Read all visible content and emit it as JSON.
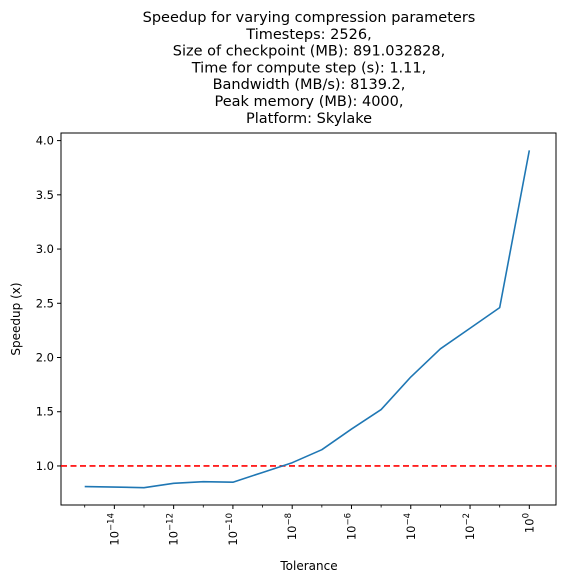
{
  "chart_data": {
    "type": "line",
    "title_lines": [
      "Speedup for varying compression parameters",
      "Timesteps: 2526,",
      "Size of checkpoint (MB): 891.032828,",
      "Time for compute step (s): 1.11,",
      "Bandwidth (MB/s): 8139.2,",
      "Peak memory (MB): 4000,",
      "Platform: Skylake"
    ],
    "xlabel": "Tolerance",
    "ylabel": "Speedup (x)",
    "x_scale": "log",
    "xlim_exponent": [
      -15.8,
      0.9
    ],
    "ylim": [
      0.64,
      4.07
    ],
    "grid": false,
    "x_ticks": [
      {
        "base": "10",
        "exp": "−14",
        "value": -14
      },
      {
        "base": "10",
        "exp": "−12",
        "value": -12
      },
      {
        "base": "10",
        "exp": "−10",
        "value": -10
      },
      {
        "base": "10",
        "exp": "−8",
        "value": -8
      },
      {
        "base": "10",
        "exp": "−6",
        "value": -6
      },
      {
        "base": "10",
        "exp": "−4",
        "value": -4
      },
      {
        "base": "10",
        "exp": "−2",
        "value": -2
      },
      {
        "base": "10",
        "exp": "0",
        "value": 0
      }
    ],
    "y_ticks": [
      {
        "label": "1.0",
        "value": 1.0
      },
      {
        "label": "1.5",
        "value": 1.5
      },
      {
        "label": "2.0",
        "value": 2.0
      },
      {
        "label": "2.5",
        "value": 2.5
      },
      {
        "label": "3.0",
        "value": 3.0
      },
      {
        "label": "3.5",
        "value": 3.5
      },
      {
        "label": "4.0",
        "value": 4.0
      }
    ],
    "series": [
      {
        "color": "#1f77b4",
        "points": [
          {
            "x": "1e-15",
            "y": 0.81
          },
          {
            "x": "1e-14",
            "y": 0.805
          },
          {
            "x": "1e-13",
            "y": 0.8
          },
          {
            "x": "1e-12",
            "y": 0.84
          },
          {
            "x": "1e-11",
            "y": 0.855
          },
          {
            "x": "1e-10",
            "y": 0.85
          },
          {
            "x": "1e-9",
            "y": 0.94
          },
          {
            "x": "1e-8",
            "y": 1.03
          },
          {
            "x": "1e-7",
            "y": 1.15
          },
          {
            "x": "1e-6",
            "y": 1.34
          },
          {
            "x": "1e-5",
            "y": 1.52
          },
          {
            "x": "1e-4",
            "y": 1.82
          },
          {
            "x": "1e-3",
            "y": 2.08
          },
          {
            "x": "1e-2",
            "y": 2.27
          },
          {
            "x": "1e-1",
            "y": 2.46
          },
          {
            "x": "1e0",
            "y": 3.91
          }
        ]
      }
    ],
    "reference_line": {
      "y": 1.0,
      "color": "#ff0000",
      "style": "dashed"
    }
  }
}
